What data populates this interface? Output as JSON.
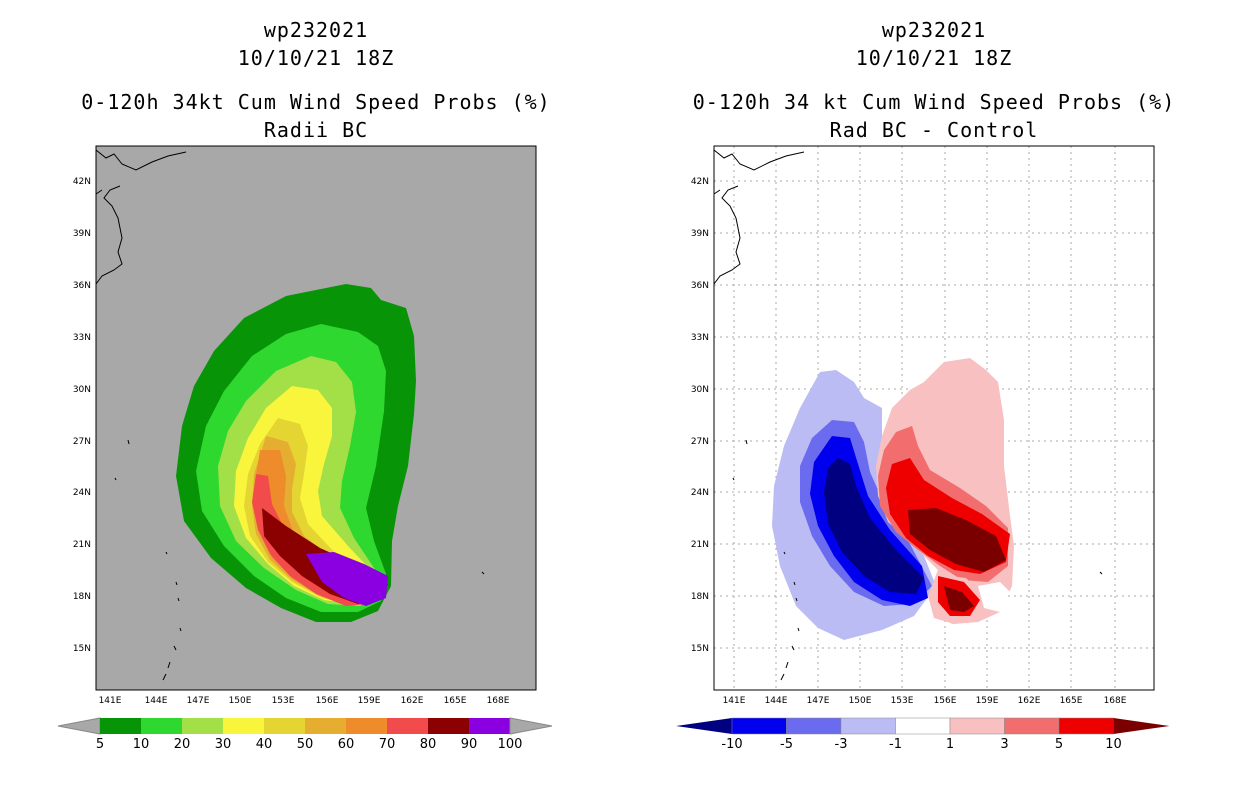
{
  "left": {
    "title_line1": "wp232021",
    "title_line2": "10/10/21 18Z",
    "title_line3": "0-120h 34kt Cum Wind Speed Probs (%)",
    "title_line4": "Radii BC",
    "background_color": "#a8a8a8",
    "colorbar": {
      "labels": [
        "5",
        "10",
        "20",
        "30",
        "40",
        "50",
        "60",
        "70",
        "80",
        "90",
        "100"
      ],
      "colors": [
        "#079507",
        "#2fd82f",
        "#a3e048",
        "#f9f53c",
        "#e5d532",
        "#e5ae31",
        "#ee8b2b",
        "#f24b4b",
        "#8b0000",
        "#8b00e0"
      ]
    }
  },
  "right": {
    "title_line1": "wp232021",
    "title_line2": "10/10/21 18Z",
    "title_line3": "0-120h 34 kt Cum Wind Speed Probs (%)",
    "title_line4": "Rad BC - Control",
    "background_color": "#ffffff",
    "colorbar": {
      "labels": [
        "-10",
        "-5",
        "-3",
        "-1",
        "1",
        "3",
        "5",
        "10"
      ],
      "colors": [
        "#000080",
        "#0000ee",
        "#6b6bf0",
        "#bcbcf5",
        "#ffffff",
        "#f8c0c0",
        "#f26e6e",
        "#ee0000",
        "#7a0000"
      ]
    }
  },
  "axes": {
    "lon_labels": [
      "141E",
      "144E",
      "147E",
      "150E",
      "153E",
      "156E",
      "159E",
      "162E",
      "165E",
      "168E"
    ],
    "lat_labels": [
      "42N",
      "39N",
      "36N",
      "33N",
      "30N",
      "27N",
      "24N",
      "21N",
      "18N",
      "15N"
    ]
  }
}
